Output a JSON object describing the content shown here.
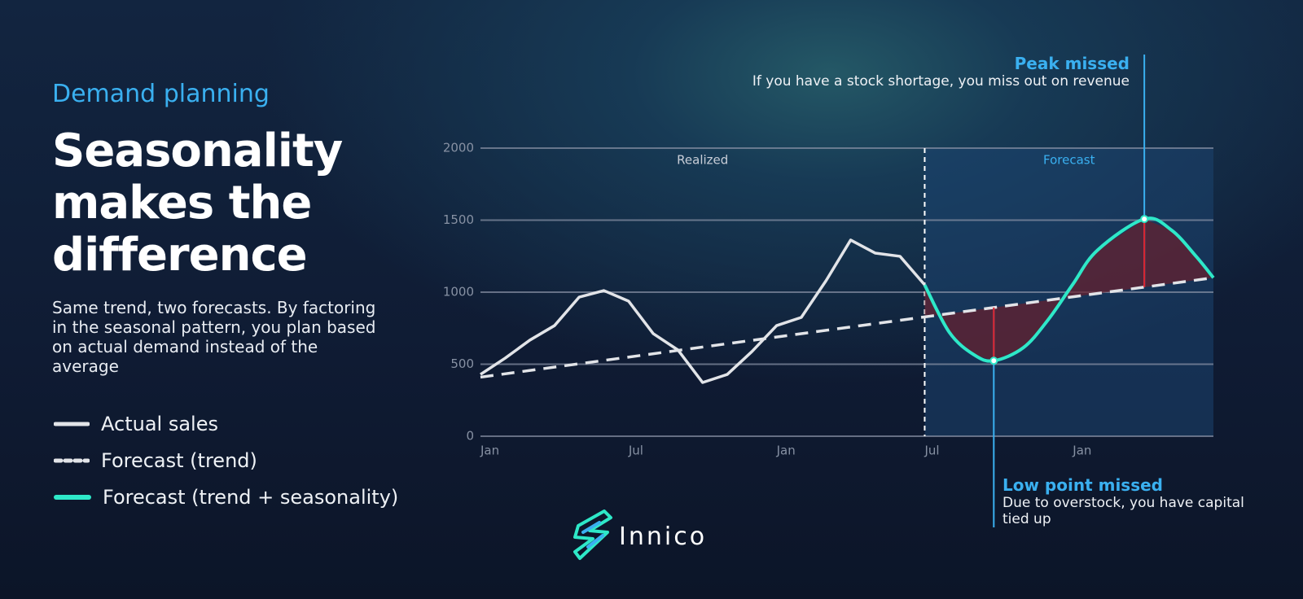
{
  "header": {
    "eyebrow": "Demand planning",
    "title": "Seasonality makes the difference",
    "description": "Same trend, two forecasts. By factoring in the seasonal pattern, you plan based on actual demand instead of the average"
  },
  "chart_data": {
    "type": "line",
    "ylim": [
      0,
      2000
    ],
    "yticks": [
      0,
      500,
      1000,
      1500,
      2000
    ],
    "grid": true,
    "xlim": [
      0,
      29.7
    ],
    "xticks": [
      {
        "value": 0,
        "label": "Jan"
      },
      {
        "value": 6,
        "label": "Jul"
      },
      {
        "value": 12,
        "label": "Jan"
      },
      {
        "value": 18,
        "label": "Jul"
      },
      {
        "value": 24,
        "label": "Jan"
      }
    ],
    "regions": [
      {
        "label": "Realized",
        "from": 0,
        "to": 18
      },
      {
        "label": "Forecast",
        "from": 18,
        "to": 29.7
      }
    ],
    "series": [
      {
        "name": "Actual sales",
        "color": "#e2e4e8",
        "style": "solid",
        "x": [
          0,
          1,
          2,
          3,
          4,
          5,
          6,
          7,
          8,
          9,
          10,
          11,
          12,
          13,
          14,
          15,
          16,
          17,
          18
        ],
        "values": [
          429,
          542,
          667,
          768,
          966,
          1011,
          938,
          712,
          599,
          373,
          429,
          588,
          768,
          825,
          1079,
          1362,
          1271,
          1249,
          1051
        ]
      },
      {
        "name": "Forecast (trend)",
        "color": "#e2e4e8",
        "style": "dashed",
        "x": [
          0,
          29.7
        ],
        "values": [
          410,
          1100
        ]
      },
      {
        "name": "Forecast (trend + seasonality)",
        "color": "#2ee8c8",
        "style": "solid",
        "x": [
          18,
          19,
          20,
          20.8,
          22,
          23,
          24,
          25,
          26.9,
          28,
          29,
          29.7
        ],
        "values": [
          1050,
          721,
          565,
          524,
          615,
          808,
          1054,
          1291,
          1508,
          1431,
          1248,
          1100
        ]
      }
    ],
    "annotations": [
      {
        "title": "Peak missed",
        "text": "If you have a stock shortage, you miss out on revenue",
        "x": 26.9
      },
      {
        "title": "Low point missed",
        "text": "Due to overstock, you have capital tied up",
        "x": 20.8
      }
    ]
  },
  "brand": "Innico"
}
